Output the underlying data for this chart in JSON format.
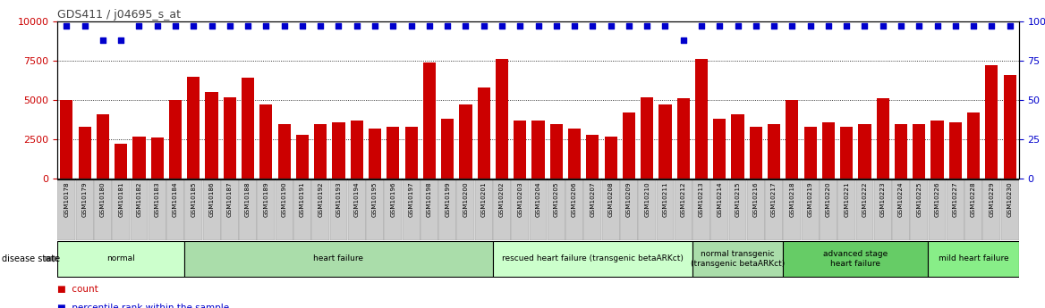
{
  "title": "GDS411 / j04695_s_at",
  "samples": [
    "GSM10178",
    "GSM10179",
    "GSM10180",
    "GSM10181",
    "GSM10182",
    "GSM10183",
    "GSM10184",
    "GSM10185",
    "GSM10186",
    "GSM10187",
    "GSM10188",
    "GSM10189",
    "GSM10190",
    "GSM10191",
    "GSM10192",
    "GSM10193",
    "GSM10194",
    "GSM10195",
    "GSM10196",
    "GSM10197",
    "GSM10198",
    "GSM10199",
    "GSM10200",
    "GSM10201",
    "GSM10202",
    "GSM10203",
    "GSM10204",
    "GSM10205",
    "GSM10206",
    "GSM10207",
    "GSM10208",
    "GSM10209",
    "GSM10210",
    "GSM10211",
    "GSM10212",
    "GSM10213",
    "GSM10214",
    "GSM10215",
    "GSM10216",
    "GSM10217",
    "GSM10218",
    "GSM10219",
    "GSM10220",
    "GSM10221",
    "GSM10222",
    "GSM10223",
    "GSM10224",
    "GSM10225",
    "GSM10226",
    "GSM10227",
    "GSM10228",
    "GSM10229",
    "GSM10230"
  ],
  "counts": [
    5000,
    3300,
    4100,
    2200,
    2700,
    2600,
    5000,
    6500,
    5500,
    5200,
    6400,
    4700,
    3500,
    2800,
    3500,
    3600,
    3700,
    3200,
    3300,
    3300,
    7400,
    3800,
    4700,
    5800,
    7600,
    3700,
    3700,
    3500,
    3200,
    2800,
    2700,
    4200,
    5200,
    4700,
    5100,
    7600,
    3800,
    4100,
    3300,
    3500,
    5000,
    3300,
    3600,
    3300,
    3500,
    5100,
    3500,
    3500,
    3700,
    3600,
    4200,
    7200,
    6600
  ],
  "percentiles": [
    97,
    97,
    88,
    88,
    97,
    97,
    97,
    97,
    97,
    97,
    97,
    97,
    97,
    97,
    97,
    97,
    97,
    97,
    97,
    97,
    97,
    97,
    97,
    97,
    97,
    97,
    97,
    97,
    97,
    97,
    97,
    97,
    97,
    97,
    88,
    97,
    97,
    97,
    97,
    97,
    97,
    97,
    97,
    97,
    97,
    97,
    97,
    97,
    97,
    97,
    97,
    97,
    97
  ],
  "groups": [
    {
      "label": "normal",
      "start": 0,
      "end": 7,
      "color": "#ccffcc"
    },
    {
      "label": "heart failure",
      "start": 7,
      "end": 24,
      "color": "#aaddaa"
    },
    {
      "label": "rescued heart failure (transgenic betaARKct)",
      "start": 24,
      "end": 35,
      "color": "#ccffcc"
    },
    {
      "label": "normal transgenic\n(transgenic betaARKct)",
      "start": 35,
      "end": 40,
      "color": "#aaddaa"
    },
    {
      "label": "advanced stage\nheart failure",
      "start": 40,
      "end": 48,
      "color": "#66cc66"
    },
    {
      "label": "mild heart failure",
      "start": 48,
      "end": 53,
      "color": "#88ee88"
    }
  ],
  "bar_color": "#cc0000",
  "dot_color": "#0000cc",
  "ylim_left": [
    0,
    10000
  ],
  "ylim_right": [
    0,
    100
  ],
  "yticks_left": [
    0,
    2500,
    5000,
    7500,
    10000
  ],
  "yticks_right": [
    0,
    25,
    50,
    75,
    100
  ],
  "title_color": "#444444",
  "background_color": "#ffffff",
  "tick_bg_color": "#cccccc",
  "tick_border_color": "#999999"
}
